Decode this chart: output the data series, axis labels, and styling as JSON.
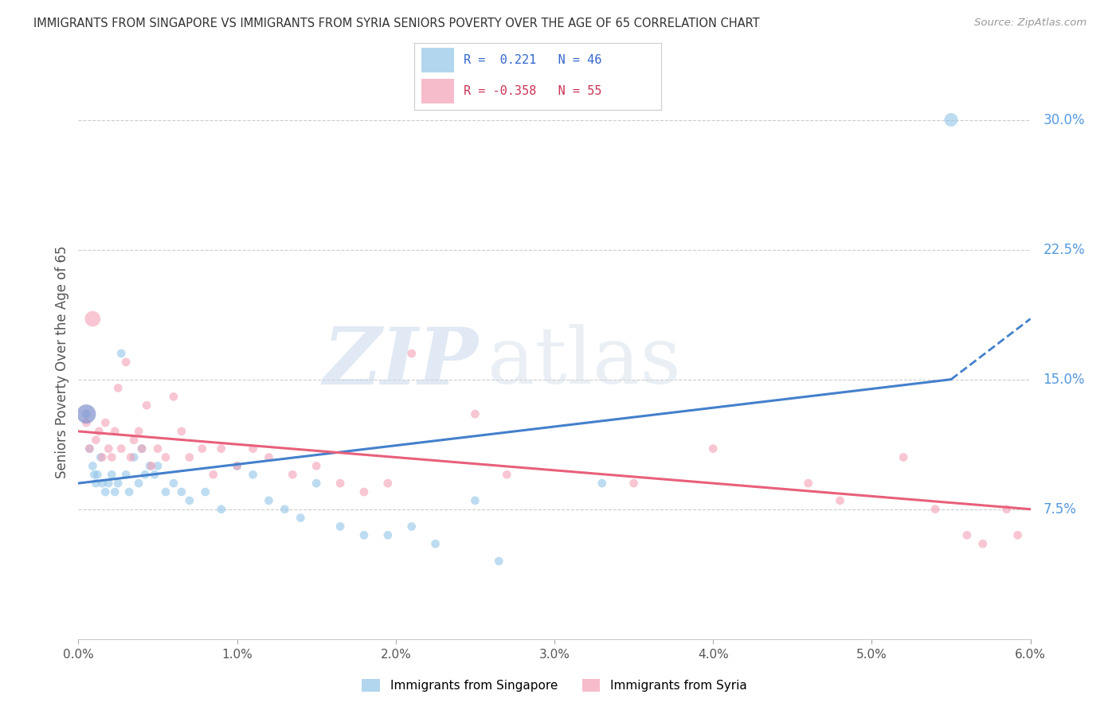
{
  "title": "IMMIGRANTS FROM SINGAPORE VS IMMIGRANTS FROM SYRIA SENIORS POVERTY OVER THE AGE OF 65 CORRELATION CHART",
  "source_text": "Source: ZipAtlas.com",
  "ylabel": "Seniors Poverty Over the Age of 65",
  "xmin": 0.0,
  "xmax": 6.0,
  "ymin": 0.0,
  "ymax": 32.0,
  "ytick_vals": [
    7.5,
    15.0,
    22.5,
    30.0
  ],
  "xtick_vals": [
    0.0,
    1.0,
    2.0,
    3.0,
    4.0,
    5.0,
    6.0
  ],
  "color_singapore": "#92C5E8",
  "color_syria": "#F4A0B5",
  "color_sg_line": "#4480CC",
  "color_sy_line": "#E8607A",
  "color_right_axis": "#5599DD",
  "watermark_zip": "ZIP",
  "watermark_atlas": "atlas",
  "sg_x": [
    0.05,
    0.07,
    0.09,
    0.1,
    0.11,
    0.12,
    0.14,
    0.15,
    0.17,
    0.19,
    0.21,
    0.23,
    0.25,
    0.27,
    0.3,
    0.32,
    0.35,
    0.38,
    0.4,
    0.42,
    0.45,
    0.48,
    0.5,
    0.55,
    0.6,
    0.65,
    0.7,
    0.8,
    0.9,
    1.0,
    1.1,
    1.2,
    1.3,
    1.4,
    1.5,
    1.65,
    1.8,
    1.95,
    2.1,
    2.25,
    2.5,
    2.65,
    3.3,
    5.5
  ],
  "sg_y": [
    13.0,
    11.0,
    10.0,
    9.5,
    9.0,
    9.5,
    10.5,
    9.0,
    8.5,
    9.0,
    9.5,
    8.5,
    9.0,
    16.5,
    9.5,
    8.5,
    10.5,
    9.0,
    11.0,
    9.5,
    10.0,
    9.5,
    10.0,
    8.5,
    9.0,
    8.5,
    8.0,
    8.5,
    7.5,
    10.0,
    9.5,
    8.0,
    7.5,
    7.0,
    9.0,
    6.5,
    6.0,
    6.0,
    6.5,
    5.5,
    8.0,
    4.5,
    9.0,
    30.0
  ],
  "sg_sizes": [
    60,
    60,
    60,
    60,
    60,
    60,
    60,
    60,
    60,
    60,
    60,
    60,
    60,
    60,
    60,
    60,
    60,
    60,
    60,
    60,
    60,
    60,
    60,
    60,
    60,
    60,
    60,
    60,
    60,
    60,
    60,
    60,
    60,
    60,
    60,
    60,
    60,
    60,
    60,
    60,
    60,
    60,
    60,
    150
  ],
  "sy_x": [
    0.05,
    0.07,
    0.09,
    0.11,
    0.13,
    0.15,
    0.17,
    0.19,
    0.21,
    0.23,
    0.25,
    0.27,
    0.3,
    0.33,
    0.35,
    0.38,
    0.4,
    0.43,
    0.46,
    0.5,
    0.55,
    0.6,
    0.65,
    0.7,
    0.78,
    0.85,
    0.9,
    1.0,
    1.1,
    1.2,
    1.35,
    1.5,
    1.65,
    1.8,
    1.95,
    2.1,
    2.5,
    2.7,
    3.5,
    4.0,
    4.6,
    4.8,
    5.2,
    5.4,
    5.6,
    5.7,
    5.85,
    5.92
  ],
  "sy_y": [
    12.5,
    11.0,
    18.5,
    11.5,
    12.0,
    10.5,
    12.5,
    11.0,
    10.5,
    12.0,
    14.5,
    11.0,
    16.0,
    10.5,
    11.5,
    12.0,
    11.0,
    13.5,
    10.0,
    11.0,
    10.5,
    14.0,
    12.0,
    10.5,
    11.0,
    9.5,
    11.0,
    10.0,
    11.0,
    10.5,
    9.5,
    10.0,
    9.0,
    8.5,
    9.0,
    16.5,
    13.0,
    9.5,
    9.0,
    11.0,
    9.0,
    8.0,
    10.5,
    7.5,
    6.0,
    5.5,
    7.5,
    6.0
  ],
  "sy_sizes": [
    60,
    60,
    200,
    60,
    60,
    60,
    60,
    60,
    60,
    60,
    60,
    60,
    60,
    60,
    60,
    60,
    60,
    60,
    60,
    60,
    60,
    60,
    60,
    60,
    60,
    60,
    60,
    60,
    60,
    60,
    60,
    60,
    60,
    60,
    60,
    60,
    60,
    60,
    60,
    60,
    60,
    60,
    60,
    60,
    60,
    60,
    60,
    60
  ],
  "large_purple_x": 0.05,
  "large_purple_y": 13.0,
  "large_purple_size": 300,
  "sg_line_x0": 0.0,
  "sg_line_x1": 5.5,
  "sg_line_dash_x1": 6.0,
  "sg_line_y_at_0": 9.0,
  "sg_line_y_at_55": 15.0,
  "sg_line_y_at_6": 18.5,
  "sy_line_y_at_0": 12.0,
  "sy_line_y_at_6": 7.5
}
